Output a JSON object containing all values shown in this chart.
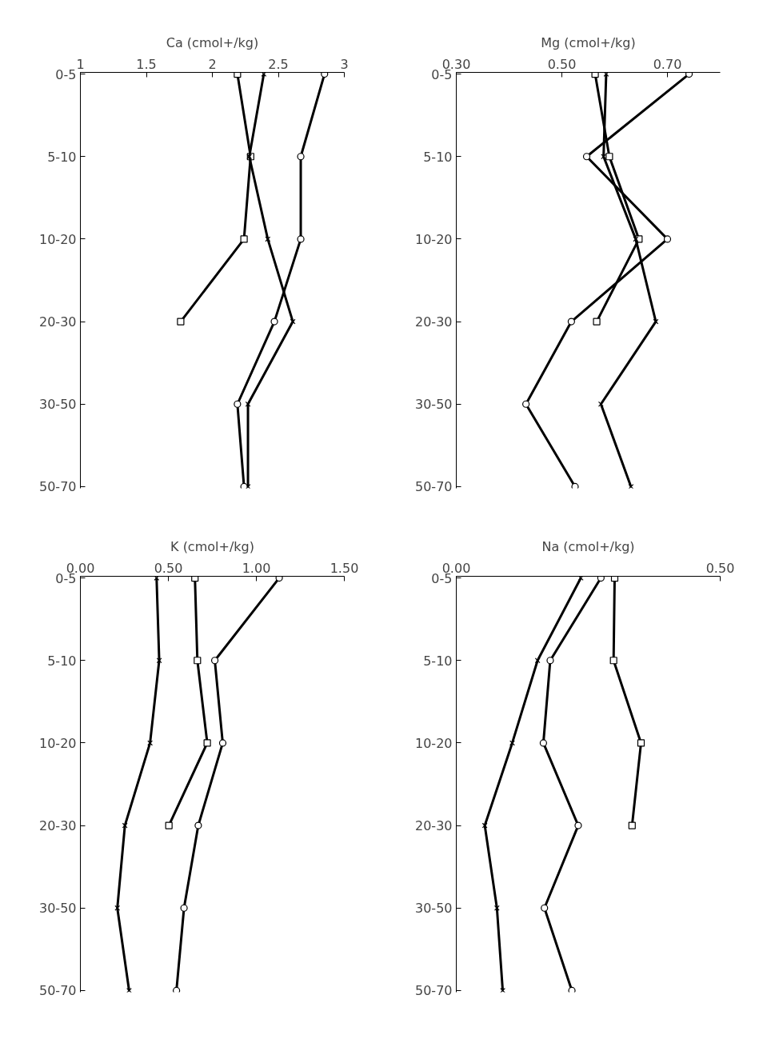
{
  "chart_data": [
    {
      "type": "line",
      "orientation": "horizontal",
      "xlabel": "Ca (cmol+/kg)",
      "categories": [
        "0-5",
        "5-10",
        "10-20",
        "20-30",
        "30-50",
        "50-70"
      ],
      "xlim": [
        1,
        3
      ],
      "xticks": [
        1,
        1.5,
        2,
        2.5,
        3
      ],
      "grid": false,
      "series": [
        {
          "color": "#000000",
          "marker": "square",
          "values": [
            2.19,
            2.29,
            2.24,
            1.76,
            null,
            null
          ]
        },
        {
          "color": "#000000",
          "marker": "cross",
          "values": [
            2.39,
            2.28,
            2.42,
            2.61,
            2.27,
            2.27
          ]
        },
        {
          "color": "#000000",
          "marker": "circle",
          "values": [
            2.85,
            2.67,
            2.67,
            2.47,
            2.19,
            2.24
          ]
        }
      ]
    },
    {
      "type": "line",
      "orientation": "horizontal",
      "xlabel": "Mg (cmol+/kg)",
      "categories": [
        "0-5",
        "5-10",
        "10-20",
        "20-30",
        "30-50",
        "50-70"
      ],
      "xlim": [
        0.3,
        0.8
      ],
      "xticks": [
        {
          "value": 0.3,
          "label": "0.30"
        },
        {
          "value": 0.5,
          "label": "0.50"
        },
        {
          "value": 0.7,
          "label": "0.70"
        }
      ],
      "grid": false,
      "series": [
        {
          "color": "#000000",
          "marker": "square",
          "values": [
            0.563,
            0.59,
            0.646,
            0.566,
            null,
            null
          ]
        },
        {
          "color": "#000000",
          "marker": "cross",
          "values": [
            0.584,
            0.579,
            0.64,
            0.678,
            0.574,
            0.631
          ]
        },
        {
          "color": "#000000",
          "marker": "circle",
          "values": [
            0.741,
            0.547,
            0.7,
            0.518,
            0.432,
            0.525
          ]
        }
      ]
    },
    {
      "type": "line",
      "orientation": "horizontal",
      "xlabel": "K (cmol+/kg)",
      "categories": [
        "0-5",
        "5-10",
        "10-20",
        "20-30",
        "30-50",
        "50-70"
      ],
      "xlim": [
        0,
        1.5
      ],
      "xticks": [
        {
          "value": 0,
          "label": "0.00"
        },
        {
          "value": 0.5,
          "label": "0.50"
        },
        {
          "value": 1,
          "label": "1.00"
        },
        {
          "value": 1.5,
          "label": "1.50"
        }
      ],
      "grid": false,
      "series": [
        {
          "color": "#000000",
          "marker": "square",
          "values": [
            0.651,
            0.665,
            0.721,
            0.503,
            null,
            null
          ]
        },
        {
          "color": "#000000",
          "marker": "cross",
          "values": [
            0.433,
            0.448,
            0.396,
            0.253,
            0.21,
            0.277
          ]
        },
        {
          "color": "#000000",
          "marker": "circle",
          "values": [
            1.13,
            0.764,
            0.809,
            0.67,
            0.589,
            0.546
          ]
        }
      ]
    },
    {
      "type": "line",
      "orientation": "horizontal",
      "xlabel": "Na (cmol+/kg)",
      "categories": [
        "0-5",
        "5-10",
        "10-20",
        "20-30",
        "30-50",
        "50-70"
      ],
      "xlim": [
        0,
        0.5
      ],
      "xticks": [
        {
          "value": 0,
          "label": "0.00"
        },
        {
          "value": 0.5,
          "label": "0.50"
        }
      ],
      "grid": false,
      "series": [
        {
          "color": "#000000",
          "marker": "square",
          "values": [
            0.3,
            0.298,
            0.35,
            0.333,
            null,
            null
          ]
        },
        {
          "color": "#000000",
          "marker": "cross",
          "values": [
            0.236,
            0.154,
            0.106,
            0.054,
            0.077,
            0.088
          ]
        },
        {
          "color": "#000000",
          "marker": "circle",
          "values": [
            0.274,
            0.178,
            0.165,
            0.231,
            0.167,
            0.219
          ]
        }
      ]
    }
  ]
}
